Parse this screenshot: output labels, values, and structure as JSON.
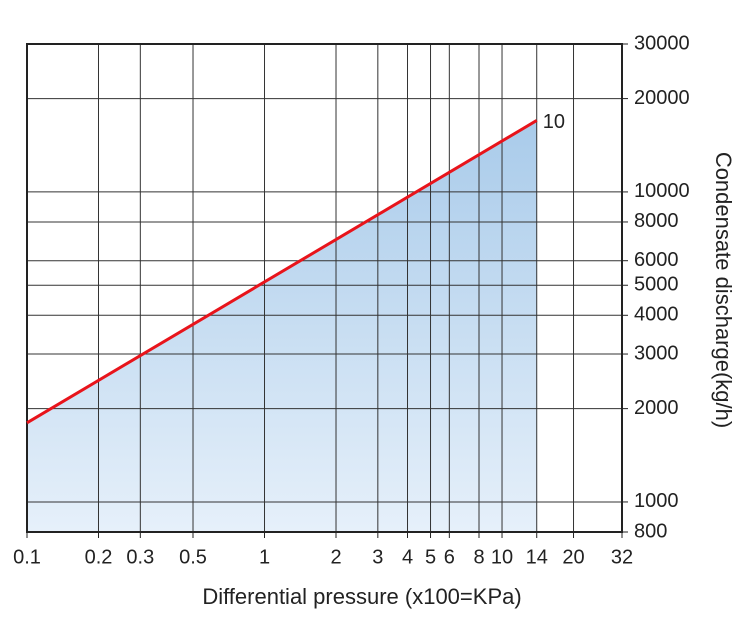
{
  "chart_data": {
    "type": "line",
    "x_label": "Differential pressure (x100=KPa)",
    "y_label": "Condensate discharge(kg/h)",
    "x_scale": "log",
    "y_scale": "log",
    "xlim": [
      0.1,
      32
    ],
    "ylim": [
      800,
      30000
    ],
    "xticks": [
      0.1,
      0.2,
      0.3,
      0.5,
      1,
      2,
      3,
      4,
      5,
      6,
      8,
      10,
      14,
      20,
      32
    ],
    "yticks": [
      800,
      1000,
      2000,
      3000,
      4000,
      5000,
      6000,
      8000,
      10000,
      20000,
      30000
    ],
    "grid": true,
    "y_axis_side": "right",
    "series": [
      {
        "name": "10",
        "color": "#e8141b",
        "fill": true,
        "x": [
          0.1,
          14
        ],
        "values": [
          1800,
          17000
        ]
      }
    ]
  }
}
